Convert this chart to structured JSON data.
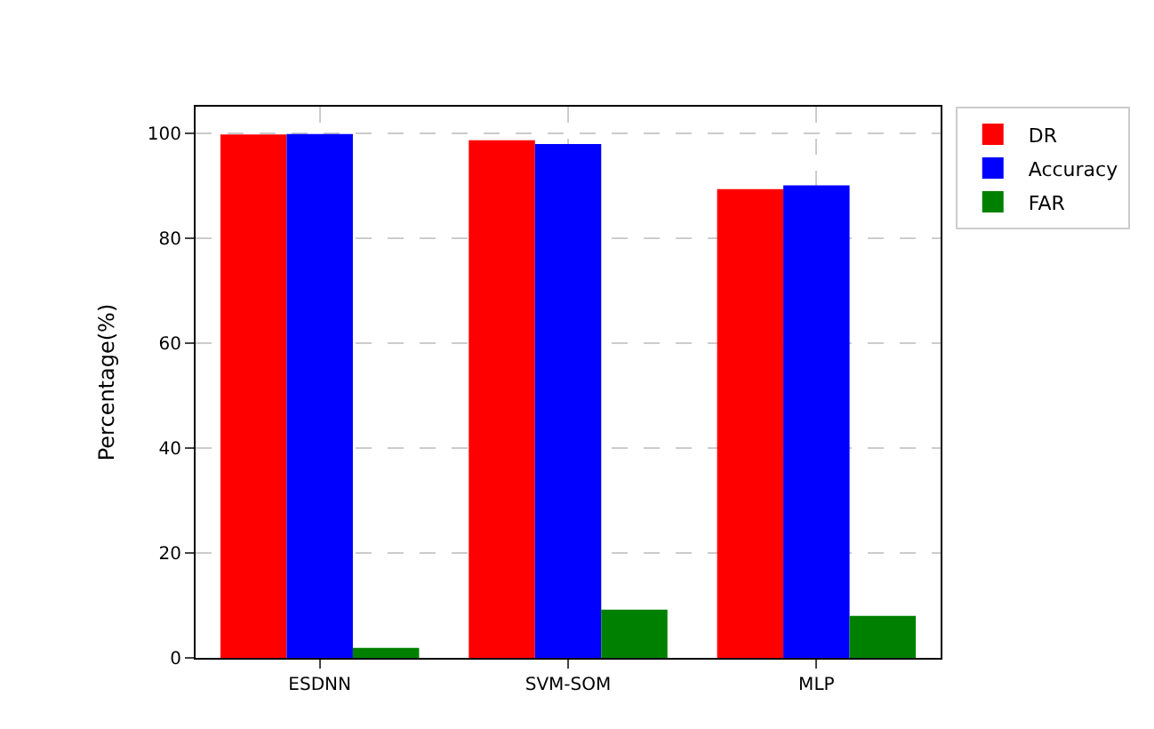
{
  "chart_data": {
    "type": "bar",
    "ylabel": "Percentage(%)",
    "categories": [
      "ESDNN",
      "SVM-SOM",
      "MLP"
    ],
    "series": [
      {
        "name": "DR",
        "color": "#ff0000",
        "values": [
          99.7,
          98.6,
          89.3
        ]
      },
      {
        "name": "Accuracy",
        "color": "#0000ff",
        "values": [
          99.8,
          97.9,
          90
        ]
      },
      {
        "name": "FAR",
        "color": "#008000",
        "values": [
          1.9,
          9.2,
          8.0
        ]
      }
    ],
    "ylim": [
      0,
      105
    ],
    "yticks": [
      0,
      20,
      40,
      60,
      80,
      100
    ],
    "grid": true,
    "legend": "top right"
  }
}
